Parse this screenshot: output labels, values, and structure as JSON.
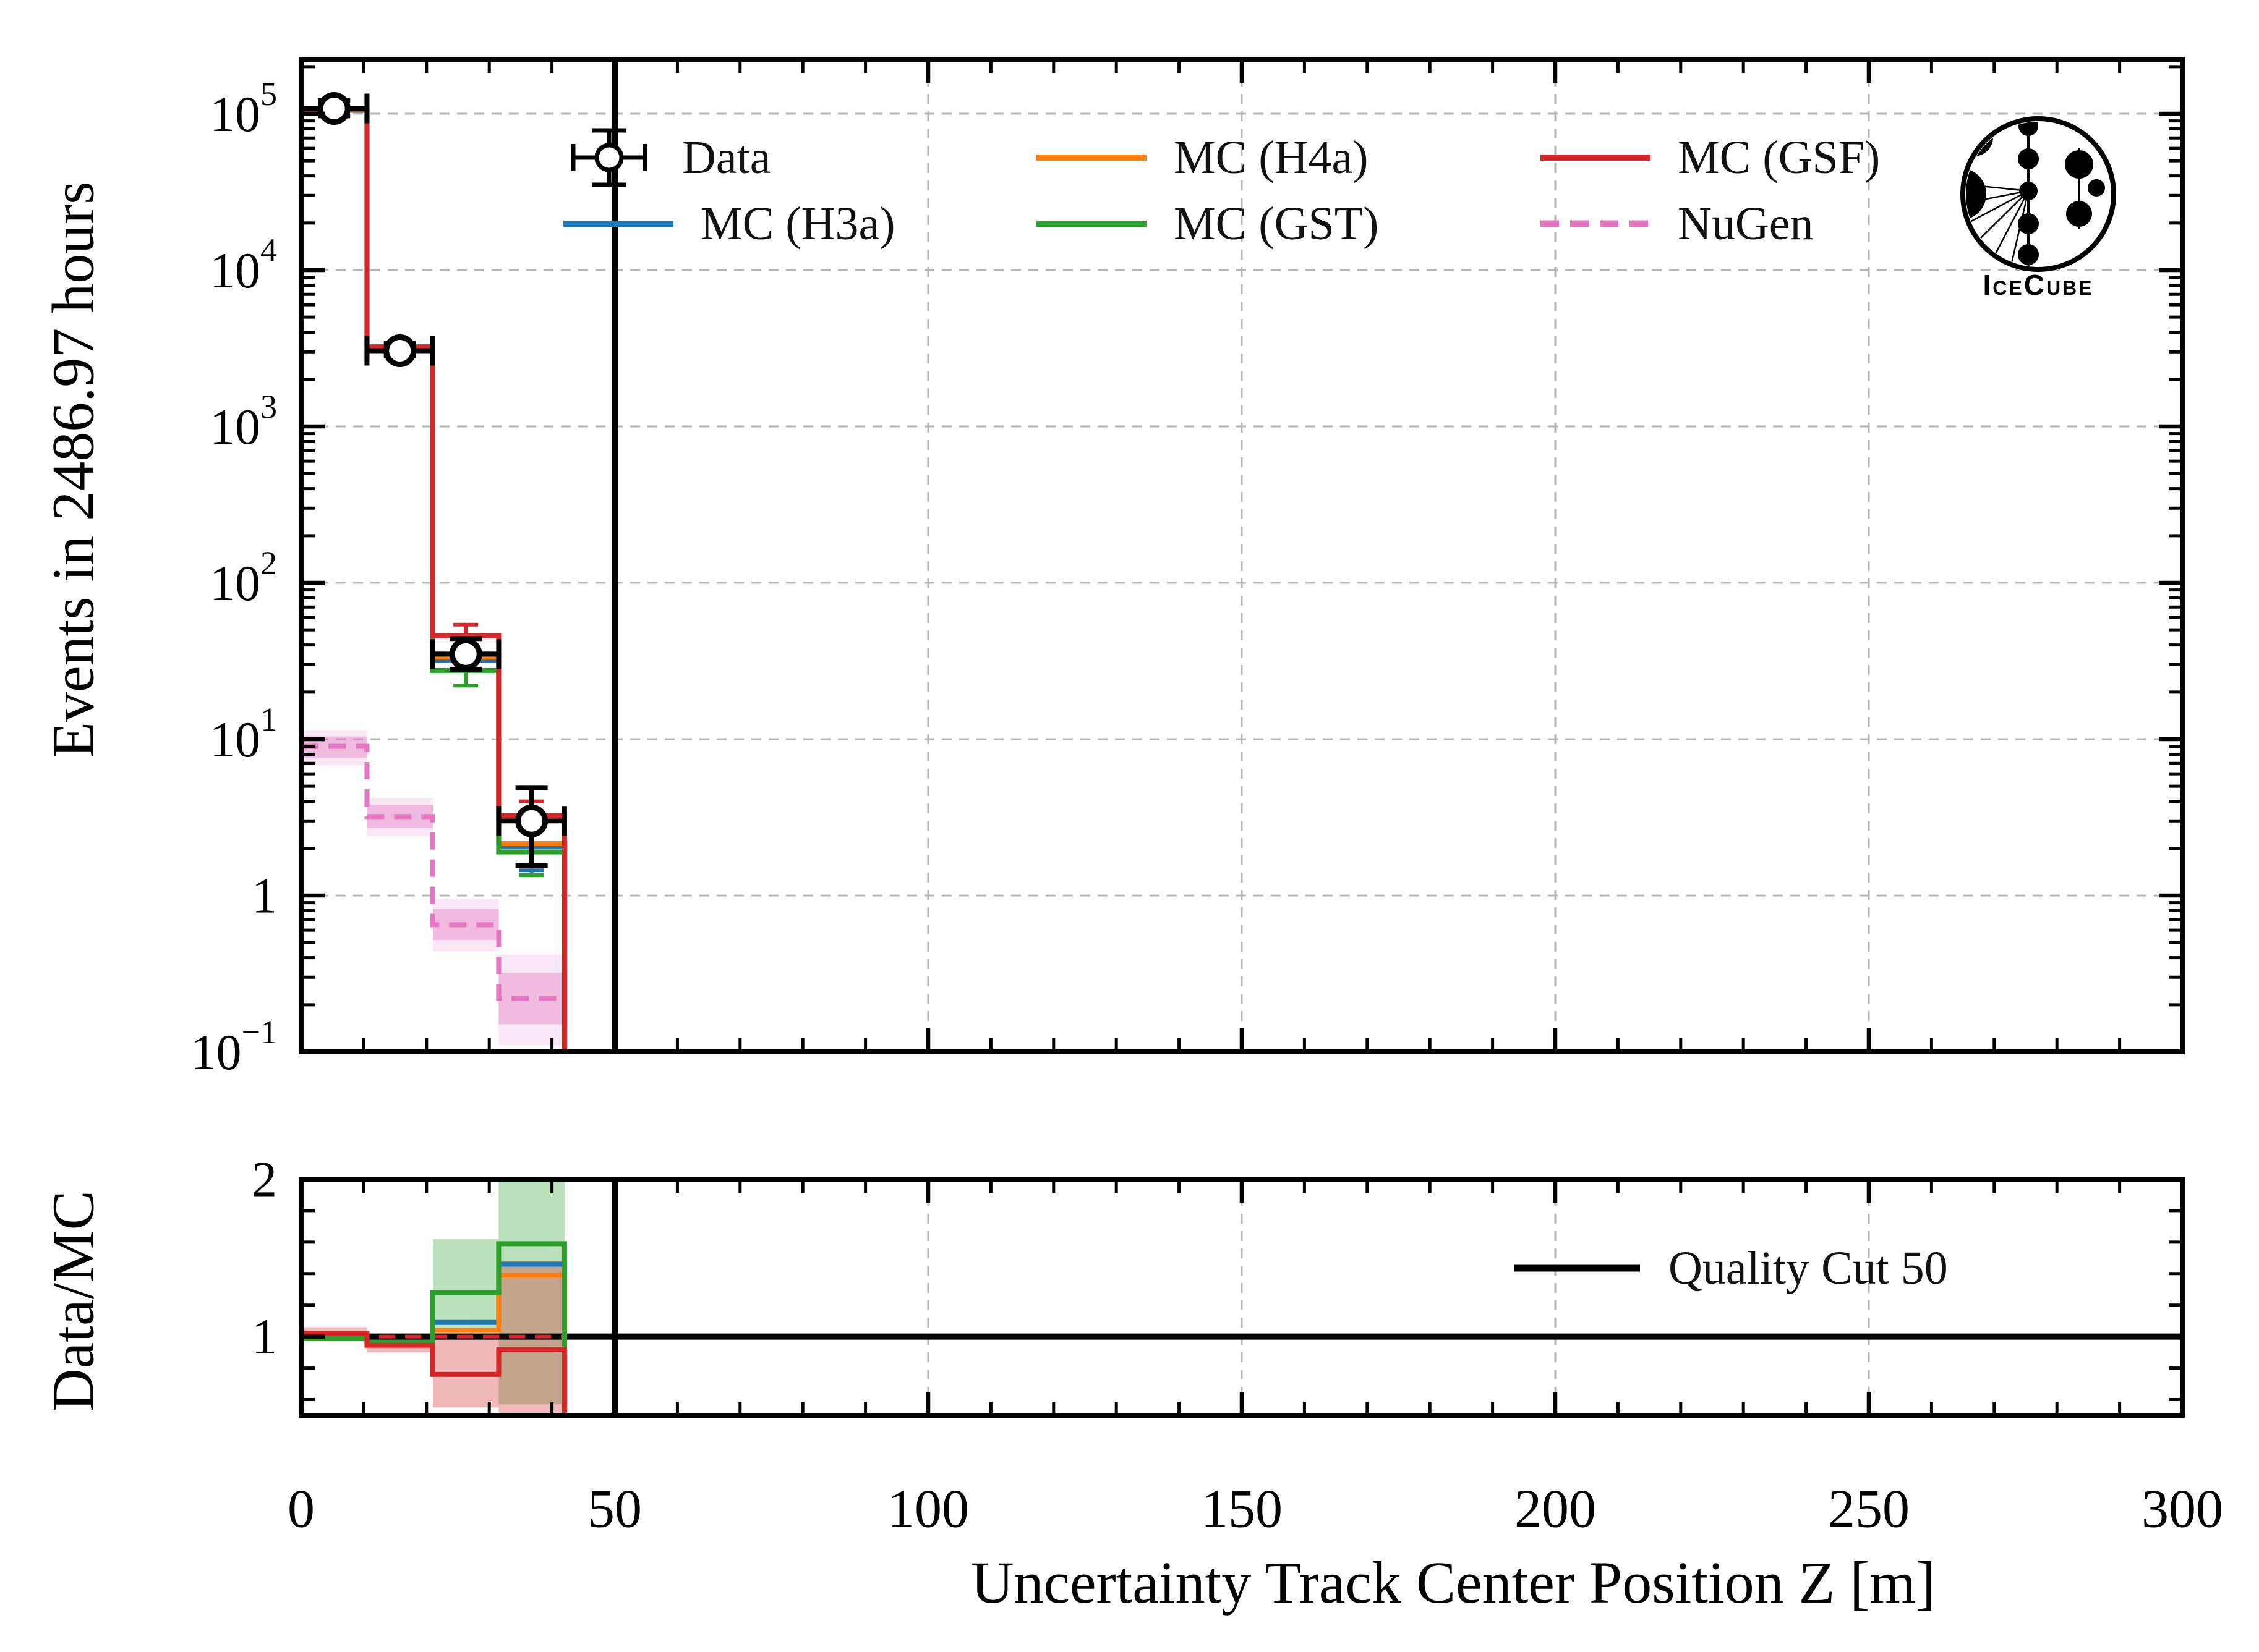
{
  "figure": {
    "ylabel_main": "Events in 2486.97 hours",
    "ylabel_ratio": "Data/MC",
    "xlabel": "Uncertainty Track Center Position Z [m]",
    "logo_text": "IceCube"
  },
  "legend": {
    "items": [
      {
        "key": "data",
        "label": "Data",
        "color": "#000000",
        "style": "marker"
      },
      {
        "key": "h3a",
        "label": "MC (H3a)",
        "color": "#1f77b4",
        "style": "solid"
      },
      {
        "key": "h4a",
        "label": "MC (H4a)",
        "color": "#ff7f0e",
        "style": "solid"
      },
      {
        "key": "gst",
        "label": "MC (GST)",
        "color": "#2ca02c",
        "style": "solid"
      },
      {
        "key": "gsf",
        "label": "MC (GSF)",
        "color": "#d62728",
        "style": "solid"
      },
      {
        "key": "nugen",
        "label": "NuGen",
        "color": "#e377c2",
        "style": "dashed"
      }
    ],
    "ratio_label": "Quality Cut 50"
  },
  "colors": {
    "grid": "#b5b5b5",
    "axes": "#000000",
    "quality_cut": "#000000"
  },
  "chart_data": [
    {
      "type": "step-histogram",
      "panel": "main",
      "ylabel": "Events in 2486.97 hours",
      "yscale": "log",
      "xlim": [
        0,
        300
      ],
      "ylim": [
        0.1,
        223000
      ],
      "xticks": [
        0,
        50,
        100,
        150,
        200,
        250,
        300
      ],
      "x_minor_step": 10,
      "ytick_exponents": [
        5,
        4,
        3,
        2,
        1,
        0,
        -1
      ],
      "grid": true,
      "bin_edges": [
        0,
        10.5,
        21,
        31.5,
        42
      ],
      "series": [
        {
          "key": "h3a",
          "name": "MC (H3a)",
          "color": "#1f77b4",
          "linestyle": "solid",
          "values": [
            105000,
            3180,
            32,
            2.05
          ]
        },
        {
          "key": "h4a",
          "name": "MC (H4a)",
          "color": "#ff7f0e",
          "linestyle": "solid",
          "values": [
            105500,
            3200,
            33.5,
            2.15
          ]
        },
        {
          "key": "gst",
          "name": "MC (GST)",
          "color": "#2ca02c",
          "linestyle": "solid",
          "values": [
            106000,
            3190,
            27.5,
            1.9
          ]
        },
        {
          "key": "gsf",
          "name": "MC (GSF)",
          "color": "#d62728",
          "linestyle": "solid",
          "values": [
            107000,
            3230,
            46,
            3.25
          ]
        }
      ],
      "nugen": {
        "key": "nugen",
        "name": "NuGen",
        "color": "#e377c2",
        "linestyle": "dashed",
        "values": [
          9.0,
          3.2,
          0.65,
          0.22
        ],
        "band_inner": [
          [
            7.6,
            10.4
          ],
          [
            2.7,
            3.8
          ],
          [
            0.52,
            0.82
          ],
          [
            0.15,
            0.32
          ]
        ],
        "band_outer": [
          [
            6.8,
            11.4
          ],
          [
            2.4,
            4.2
          ],
          [
            0.44,
            0.95
          ],
          [
            0.11,
            0.42
          ]
        ]
      },
      "mc_stat_errors": [
        {
          "series": "gsf",
          "bin": 2,
          "lo": 40,
          "hi": 54
        },
        {
          "series": "gsf",
          "bin": 3,
          "lo": 2.6,
          "hi": 4.0
        },
        {
          "series": "gst",
          "bin": 2,
          "lo": 22,
          "hi": 33
        },
        {
          "series": "gst",
          "bin": 3,
          "lo": 1.35,
          "hi": 2.6
        },
        {
          "series": "h4a",
          "bin": 3,
          "lo": 1.55,
          "hi": 2.9
        },
        {
          "series": "h3a",
          "bin": 3,
          "lo": 1.45,
          "hi": 2.75
        }
      ],
      "data_points": {
        "name": "Data",
        "marker": "open-circle",
        "color": "#000000",
        "x": [
          5.25,
          15.75,
          26.25,
          36.75
        ],
        "y": [
          108000,
          3050,
          35,
          3.0
        ],
        "y_lo": [
          97000,
          2820,
          28,
          1.55
        ],
        "y_hi": [
          121000,
          3380,
          44,
          4.9
        ],
        "x_halfwidth": 5.25
      },
      "quality_cut_x": 50
    },
    {
      "type": "step",
      "panel": "ratio",
      "ylabel": "Data/MC",
      "xlabel": "Uncertainty Track Center Position Z [m]",
      "xlim": [
        0,
        300
      ],
      "ylim": [
        0.5,
        2
      ],
      "yticks": [
        1,
        2
      ],
      "y_minor_step": 0.2,
      "bin_edges": [
        0,
        10.5,
        21,
        31.5,
        42
      ],
      "series": [
        {
          "key": "h3a",
          "name": "MC (H3a)",
          "color": "#1f77b4",
          "values": [
            1.0,
            0.96,
            1.09,
            1.46
          ]
        },
        {
          "key": "h4a",
          "name": "MC (H4a)",
          "color": "#ff7f0e",
          "values": [
            1.0,
            0.96,
            1.04,
            1.39
          ]
        },
        {
          "key": "gst",
          "name": "MC (GST)",
          "color": "#2ca02c",
          "values": [
            0.99,
            0.965,
            1.28,
            1.59
          ]
        },
        {
          "key": "gsf",
          "name": "MC (GSF)",
          "color": "#d62728",
          "values": [
            1.02,
            0.945,
            0.76,
            0.92
          ]
        }
      ],
      "bands": [
        {
          "series": "gst",
          "color": "#2ca02c",
          "ranges": [
            [
              0.98,
              1.02
            ],
            [
              0.94,
              0.99
            ],
            [
              1.0,
              1.62
            ],
            [
              0.57,
              2.0
            ]
          ]
        },
        {
          "series": "gsf",
          "color": "#d62728",
          "ranges": [
            [
              0.97,
              1.06
            ],
            [
              0.9,
              0.985
            ],
            [
              0.55,
              1.0
            ],
            [
              0.45,
              1.48
            ]
          ]
        }
      ],
      "reference_line": 1.0,
      "gsf_dashed_reference": 1.0,
      "quality_cut_x": 50,
      "legend_label": "Quality Cut 50"
    }
  ]
}
